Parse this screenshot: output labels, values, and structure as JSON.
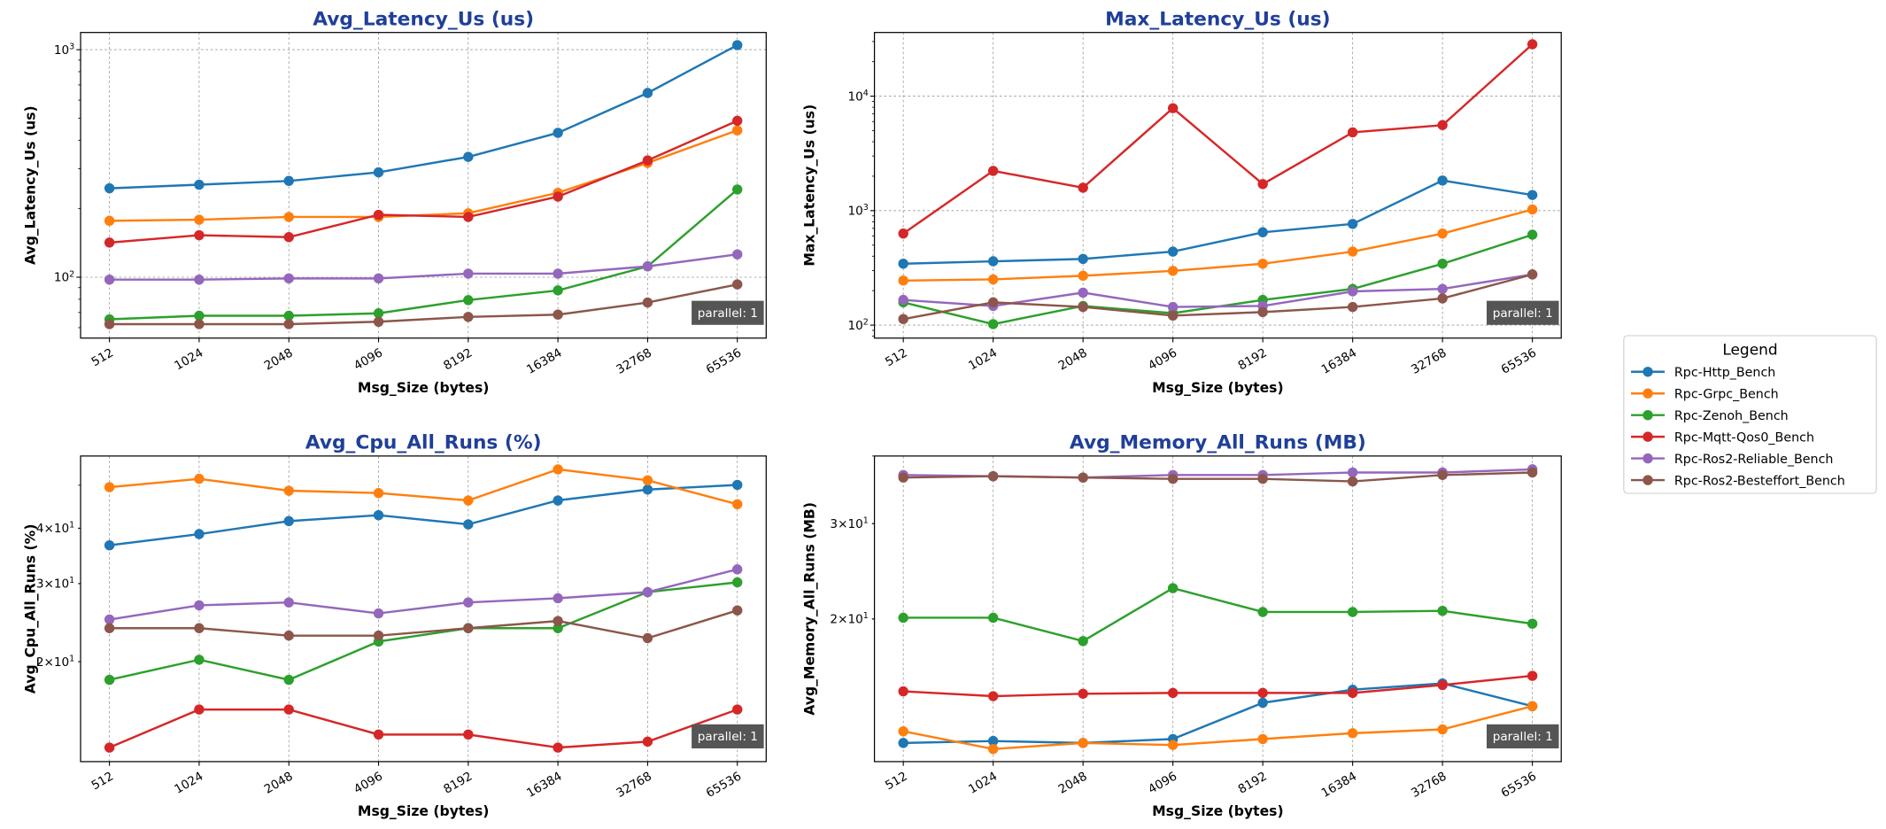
{
  "legend": {
    "title": "Legend",
    "placement": "right"
  },
  "series_names": [
    "Rpc-Http_Bench",
    "Rpc-Grpc_Bench",
    "Rpc-Zenoh_Bench",
    "Rpc-Mqtt-Qos0_Bench",
    "Rpc-Ros2-Reliable_Bench",
    "Rpc-Ros2-Besteffort_Bench"
  ],
  "series_colors": [
    "#1f77b4",
    "#ff7f0e",
    "#2ca02c",
    "#d62728",
    "#9467bd",
    "#8c564b"
  ],
  "title_color": "#1f3f99",
  "chart_data": [
    {
      "type": "line",
      "title": "Avg_Latency_Us  (us)",
      "xlabel": "Msg_Size (bytes)",
      "ylabel": "Avg_Latency_Us (us)",
      "yscale": "log",
      "ylim": [
        54,
        1190
      ],
      "grid": true,
      "annotation": "parallel: 1",
      "categories": [
        "512",
        "1024",
        "2048",
        "4096",
        "8192",
        "16384",
        "32768",
        "65536"
      ],
      "yticks": [
        {
          "value": 100,
          "label": "10^2",
          "base": "10",
          "exp": "2"
        },
        {
          "value": 1000,
          "label": "10^3",
          "base": "10",
          "exp": "3"
        }
      ],
      "series": [
        {
          "name": "Rpc-Http_Bench",
          "values": [
            246,
            255,
            265,
            289,
            338,
            431,
            645,
            1047
          ]
        },
        {
          "name": "Rpc-Grpc_Bench",
          "values": [
            177,
            179,
            184,
            184,
            191,
            235,
            318,
            442
          ]
        },
        {
          "name": "Rpc-Zenoh_Bench",
          "values": [
            65.3,
            67.7,
            67.7,
            69.4,
            79.3,
            87.5,
            111.6,
            243
          ]
        },
        {
          "name": "Rpc-Mqtt-Qos0_Bench",
          "values": [
            142,
            153,
            150,
            188,
            184,
            226,
            326,
            487
          ]
        },
        {
          "name": "Rpc-Ros2-Reliable_Bench",
          "values": [
            97.6,
            97.6,
            98.8,
            98.8,
            103.7,
            103.7,
            111.6,
            126
          ]
        },
        {
          "name": "Rpc-Ros2-Besteffort_Bench",
          "values": [
            62.2,
            62.2,
            62.2,
            63.7,
            66.9,
            68.5,
            77.4,
            93
          ]
        }
      ]
    },
    {
      "type": "line",
      "title": "Max_Latency_Us  (us)",
      "xlabel": "Msg_Size (bytes)",
      "ylabel": "Max_Latency_Us (us)",
      "yscale": "log",
      "ylim": [
        77,
        36000
      ],
      "grid": true,
      "annotation": "parallel: 1",
      "categories": [
        "512",
        "1024",
        "2048",
        "4096",
        "8192",
        "16384",
        "32768",
        "65536"
      ],
      "yticks": [
        {
          "value": 100,
          "label": "10^2",
          "base": "10",
          "exp": "2"
        },
        {
          "value": 1000,
          "label": "10^3",
          "base": "10",
          "exp": "3"
        },
        {
          "value": 10000,
          "label": "10^4",
          "base": "10",
          "exp": "4"
        }
      ],
      "series": [
        {
          "name": "Rpc-Http_Bench",
          "values": [
            344,
            361,
            379,
            439,
            647,
            766,
            1833,
            1370
          ]
        },
        {
          "name": "Rpc-Grpc_Bench",
          "values": [
            245,
            251,
            270,
            298,
            344,
            439,
            631,
            1024
          ]
        },
        {
          "name": "Rpc-Zenoh_Bench",
          "values": [
            158,
            102,
            147,
            127,
            166,
            207,
            344,
            616
          ]
        },
        {
          "name": "Rpc-Mqtt-Qos0_Bench",
          "values": [
            631,
            2225,
            1585,
            7850,
            1705,
            4830,
            5590,
            28400
          ]
        },
        {
          "name": "Rpc-Ros2-Reliable_Bench",
          "values": [
            166,
            147,
            192,
            144,
            147,
            197,
            207,
            277
          ]
        },
        {
          "name": "Rpc-Ros2-Besteffort_Bench",
          "values": [
            113,
            158,
            144,
            121,
            130,
            144,
            171,
            277
          ]
        }
      ]
    },
    {
      "type": "line",
      "title": "Avg_Cpu_All_Runs  (%)",
      "xlabel": "Msg_Size (bytes)",
      "ylabel": "Avg_Cpu_All_Runs (%)",
      "yscale": "log",
      "ylim": [
        11.9,
        58.2
      ],
      "grid": true,
      "annotation": "parallel: 1",
      "categories": [
        "512",
        "1024",
        "2048",
        "4096",
        "8192",
        "16384",
        "32768",
        "65536"
      ],
      "yticks": [
        {
          "value": 20,
          "label": "2x10^1",
          "base": "2×10",
          "exp": "1"
        },
        {
          "value": 30,
          "label": "3x10^1",
          "base": "3×10",
          "exp": "1"
        },
        {
          "value": 40,
          "label": "4x10^1",
          "base": "4×10",
          "exp": "1"
        }
      ],
      "series": [
        {
          "name": "Rpc-Http_Bench",
          "values": [
            36.6,
            38.8,
            41.5,
            42.8,
            40.8,
            46.2,
            48.9,
            50.1
          ]
        },
        {
          "name": "Rpc-Grpc_Bench",
          "values": [
            49.5,
            51.7,
            48.6,
            48.0,
            46.2,
            54.3,
            51.3,
            45.3
          ]
        },
        {
          "name": "Rpc-Zenoh_Bench",
          "values": [
            18.2,
            20.2,
            18.2,
            22.2,
            23.8,
            23.8,
            28.7,
            30.2
          ]
        },
        {
          "name": "Rpc-Mqtt-Qos0_Bench",
          "values": [
            12.8,
            15.6,
            15.6,
            13.7,
            13.7,
            12.8,
            13.2,
            15.6
          ]
        },
        {
          "name": "Rpc-Ros2-Reliable_Bench",
          "values": [
            24.9,
            26.8,
            27.2,
            25.7,
            27.2,
            27.8,
            28.7,
            32.3
          ]
        },
        {
          "name": "Rpc-Ros2-Besteffort_Bench",
          "values": [
            23.8,
            23.8,
            22.9,
            22.9,
            23.8,
            24.7,
            22.6,
            26.1
          ]
        }
      ]
    },
    {
      "type": "line",
      "title": "Avg_Memory_All_Runs  (MB)",
      "xlabel": "Msg_Size (bytes)",
      "ylabel": "Avg_Memory_All_Runs (MB)",
      "yscale": "log",
      "ylim": [
        10.9,
        40
      ],
      "grid": true,
      "annotation": "parallel: 1",
      "categories": [
        "512",
        "1024",
        "2048",
        "4096",
        "8192",
        "16384",
        "32768",
        "65536"
      ],
      "yticks": [
        {
          "value": 20,
          "label": "2x10^1",
          "base": "2×10",
          "exp": "1"
        },
        {
          "value": 30,
          "label": "3x10^1",
          "base": "3×10",
          "exp": "1"
        }
      ],
      "series": [
        {
          "name": "Rpc-Http_Bench",
          "values": [
            11.8,
            11.9,
            11.8,
            12.0,
            14.0,
            14.8,
            15.2,
            13.8
          ]
        },
        {
          "name": "Rpc-Grpc_Bench",
          "values": [
            12.4,
            11.5,
            11.8,
            11.7,
            12.0,
            12.3,
            12.5,
            13.8
          ]
        },
        {
          "name": "Rpc-Zenoh_Bench",
          "values": [
            20.1,
            20.1,
            18.2,
            22.8,
            20.6,
            20.6,
            20.7,
            19.6
          ]
        },
        {
          "name": "Rpc-Mqtt-Qos0_Bench",
          "values": [
            14.7,
            14.4,
            14.55,
            14.6,
            14.6,
            14.6,
            15.1,
            15.7
          ]
        },
        {
          "name": "Rpc-Ros2-Reliable_Bench",
          "values": [
            36.9,
            36.7,
            36.5,
            36.9,
            36.9,
            37.3,
            37.3,
            37.8
          ]
        },
        {
          "name": "Rpc-Ros2-Besteffort_Bench",
          "values": [
            36.5,
            36.7,
            36.5,
            36.3,
            36.3,
            35.9,
            36.9,
            37.3
          ]
        }
      ]
    }
  ]
}
